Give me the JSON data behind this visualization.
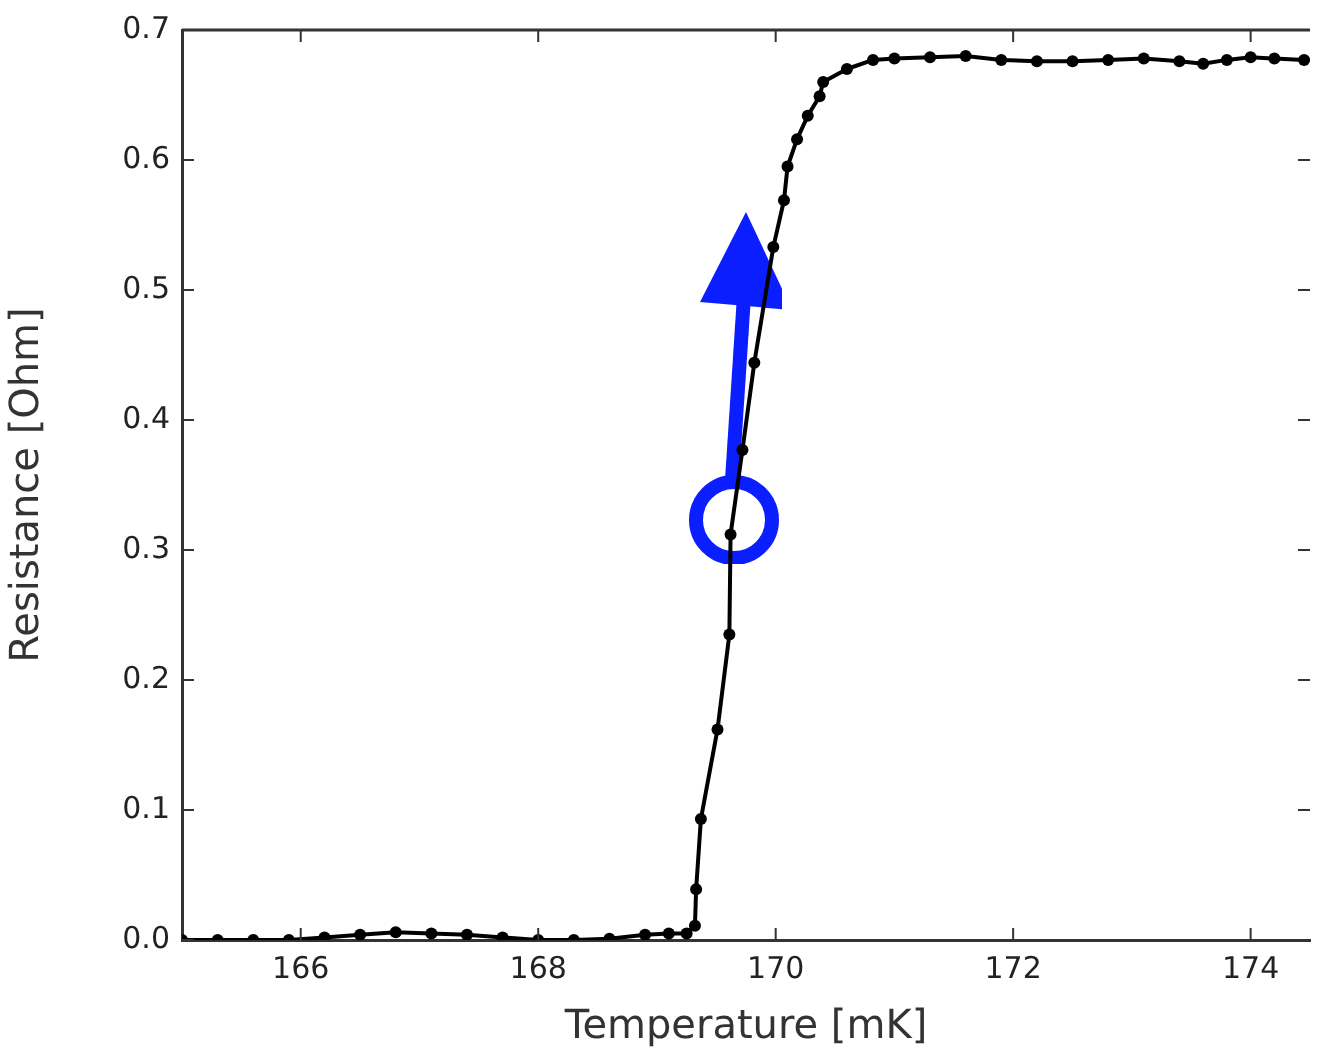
{
  "chart_data": {
    "type": "line",
    "xlabel": "Temperature [mK]",
    "ylabel": "Resistance [Ohm]",
    "xlim": [
      165,
      174.5
    ],
    "xticks": [
      166,
      168,
      170,
      172,
      174
    ],
    "ylim": [
      0,
      0.7
    ],
    "yticks": [
      {
        "value": 0,
        "label": "0.0"
      },
      {
        "value": 0.1,
        "label": "0.1"
      },
      {
        "value": 0.2,
        "label": "0.2"
      },
      {
        "value": 0.3,
        "label": "0.3"
      },
      {
        "value": 0.4,
        "label": "0.4"
      },
      {
        "value": 0.5,
        "label": "0.5"
      },
      {
        "value": 0.6,
        "label": "0.6"
      },
      {
        "value": 0.7,
        "label": "0.7"
      }
    ],
    "grid": false,
    "legend": false,
    "marker": "circle",
    "line_style": "solid",
    "series": [
      {
        "color": "#000000",
        "x": [
          165.0,
          165.3,
          165.6,
          165.9,
          166.2,
          166.5,
          166.8,
          167.1,
          167.4,
          167.7,
          168.0,
          168.3,
          168.6,
          168.9,
          169.1,
          169.25,
          169.32,
          169.33,
          169.37,
          169.51,
          169.61,
          169.62,
          169.72,
          169.82,
          169.98,
          170.07,
          170.1,
          170.18,
          170.27,
          170.37,
          170.4,
          170.6,
          170.82,
          171.0,
          171.3,
          171.6,
          171.9,
          172.2,
          172.5,
          172.8,
          173.1,
          173.4,
          173.6,
          173.8,
          174.0,
          174.2,
          174.45
        ],
        "values": [
          0,
          0,
          0,
          0,
          0.002,
          0.004,
          0.006,
          0.005,
          0.004,
          0.002,
          0,
          0,
          0.001,
          0.004,
          0.005,
          0.005,
          0.011,
          0.039,
          0.093,
          0.162,
          0.235,
          0.312,
          0.377,
          0.444,
          0.533,
          0.569,
          0.595,
          0.616,
          0.634,
          0.649,
          0.66,
          0.67,
          0.677,
          0.678,
          0.679,
          0.68,
          0.677,
          0.676,
          0.676,
          0.677,
          0.678,
          0.676,
          0.674,
          0.677,
          0.679,
          0.678,
          0.677
        ]
      }
    ]
  }
}
